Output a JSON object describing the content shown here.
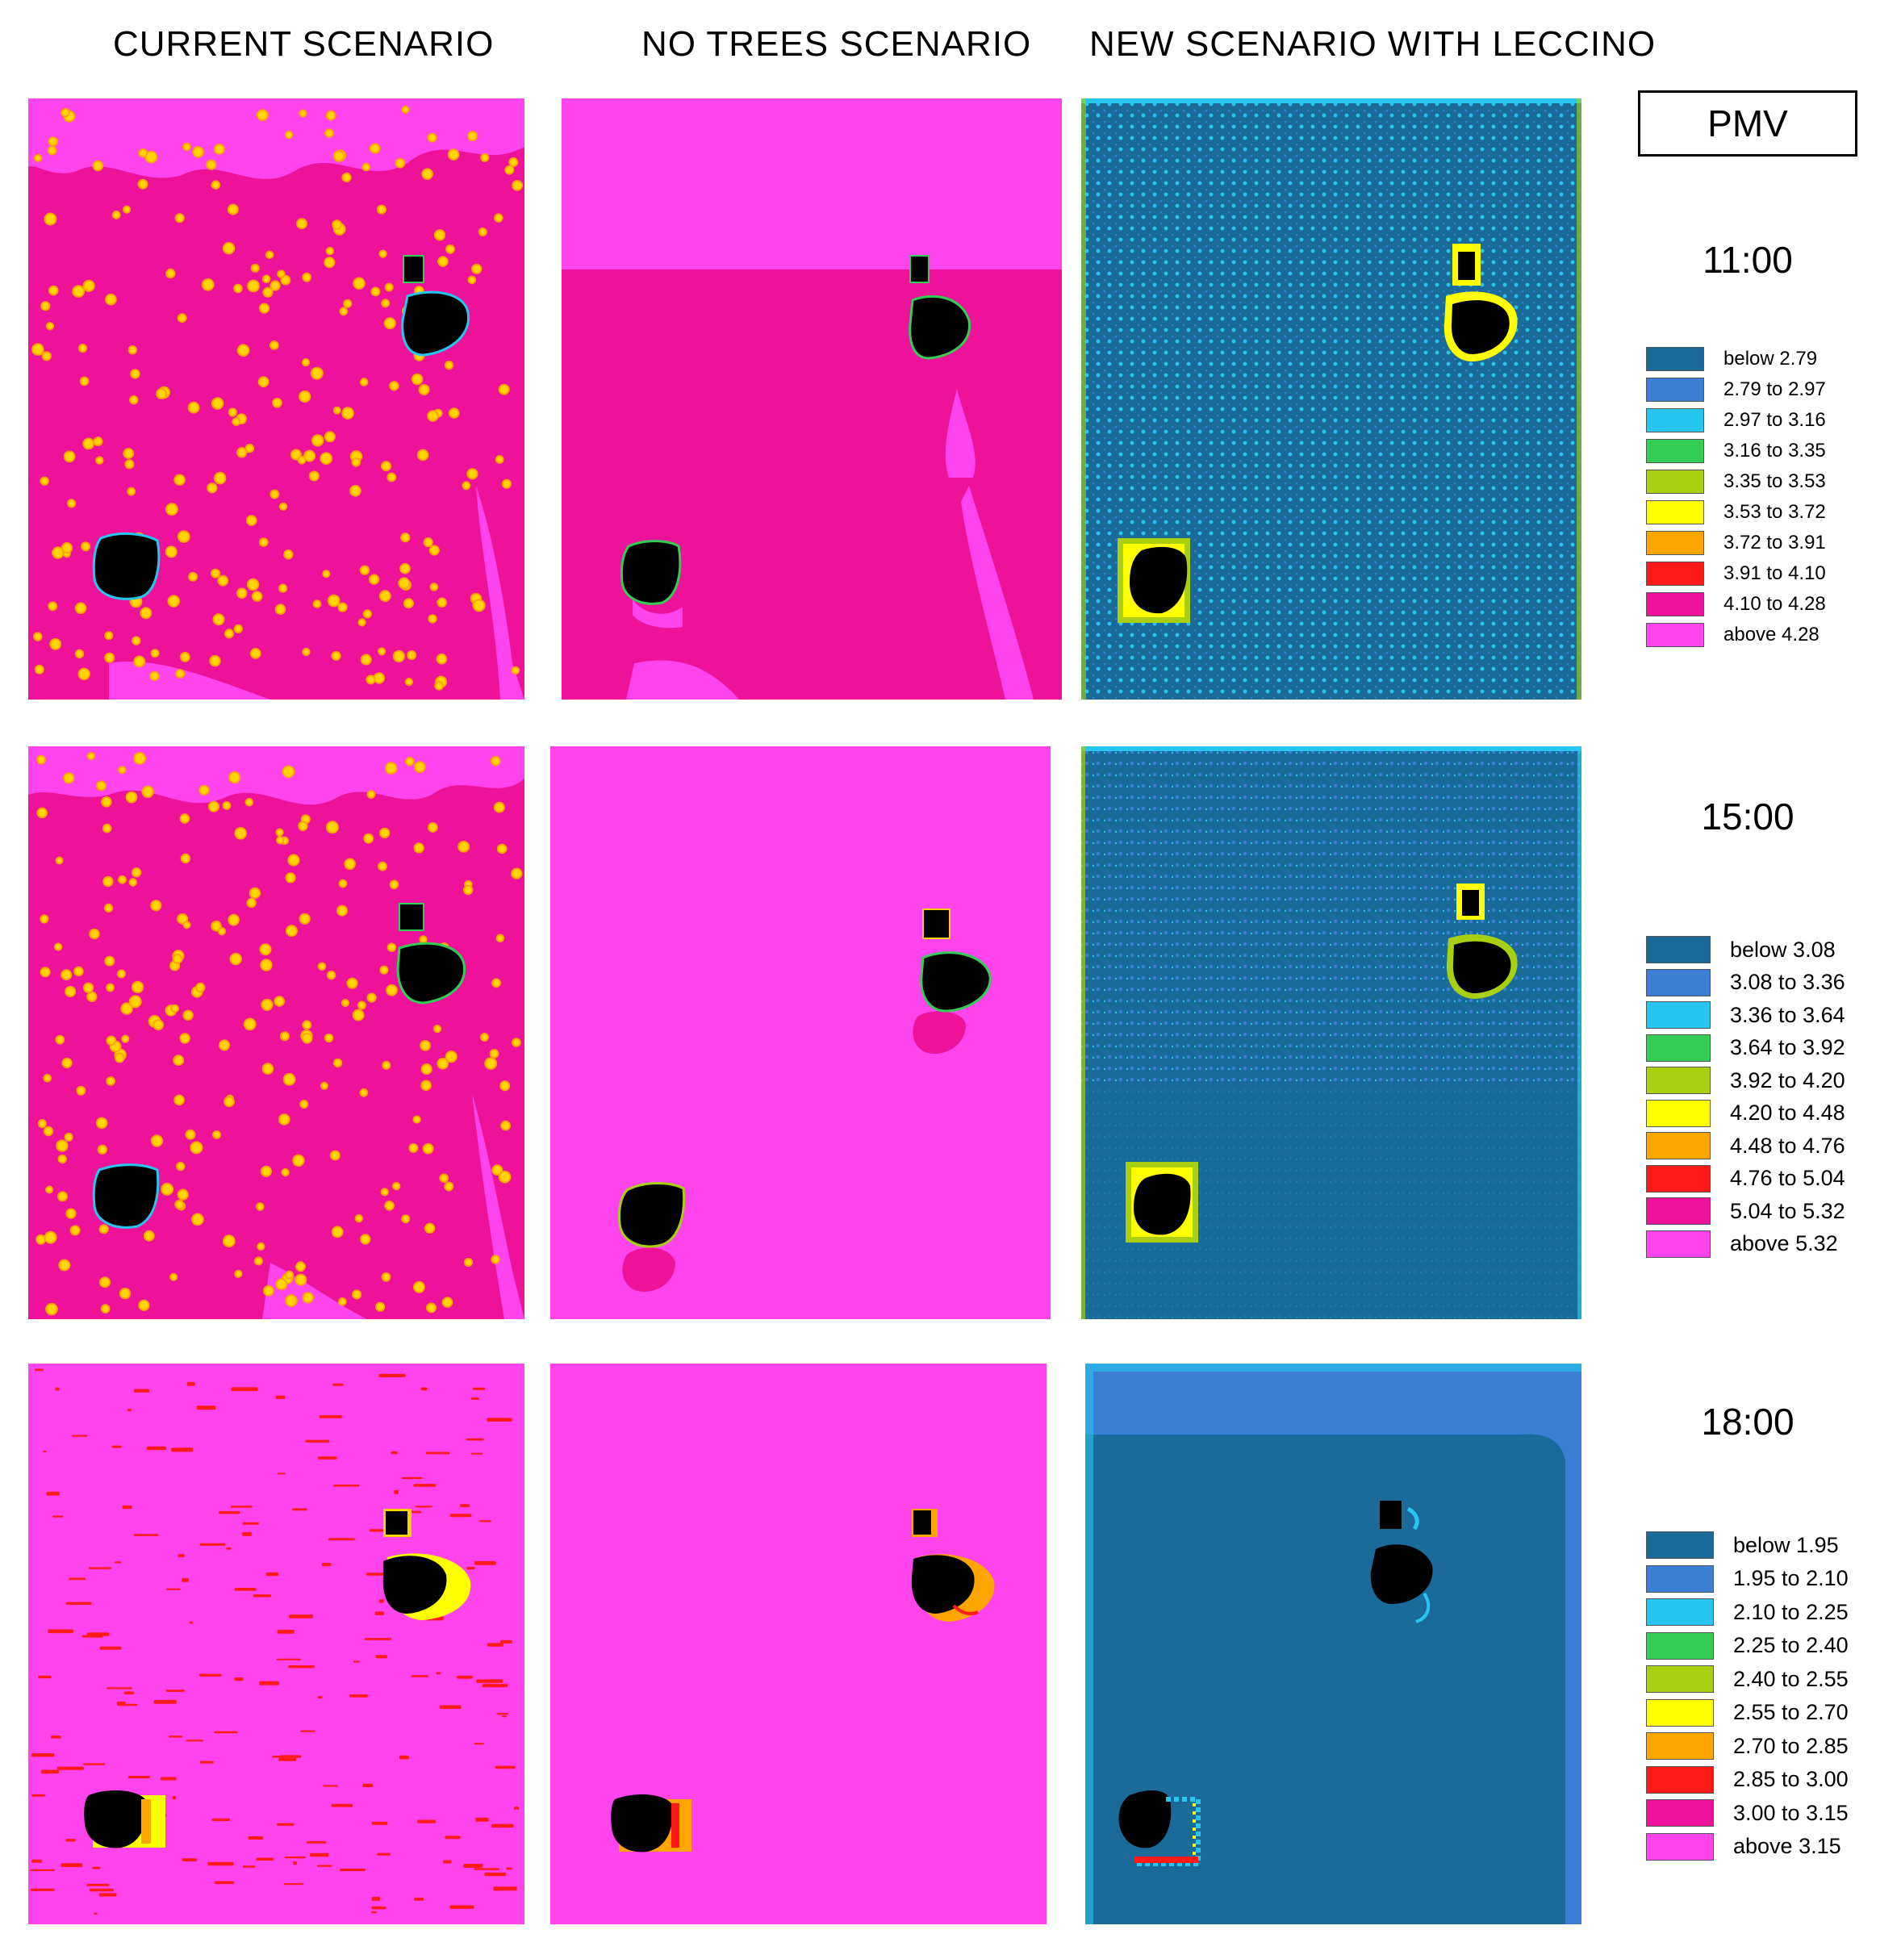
{
  "columns": [
    {
      "title": "CURRENT SCENARIO"
    },
    {
      "title": "NO TREES SCENARIO"
    },
    {
      "title": "NEW SCENARIO WITH LECCINO"
    }
  ],
  "legend_title": "PMV",
  "palette": [
    "#1a6b99",
    "#3a7fd4",
    "#26c6f0",
    "#33cc55",
    "#a8d010",
    "#ffff00",
    "#ffa500",
    "#ff1a1a",
    "#ee1199",
    "#ff44ee"
  ],
  "rows": [
    {
      "time": "11:00",
      "legend": [
        "below 2.79",
        "2.79 to 2.97",
        "2.97 to 3.16",
        "3.16 to 3.35",
        "3.35 to 3.53",
        "3.53 to 3.72",
        "3.72 to 3.91",
        "3.91 to 4.10",
        "4.10 to 4.28",
        "above 4.28"
      ]
    },
    {
      "time": "15:00",
      "legend": [
        "below 3.08",
        "3.08 to 3.36",
        "3.36 to 3.64",
        "3.64 to 3.92",
        "3.92 to 4.20",
        "4.20 to 4.48",
        "4.48 to 4.76",
        "4.76 to 5.04",
        "5.04 to 5.32",
        "above 5.32"
      ]
    },
    {
      "time": "18:00",
      "legend": [
        "below 1.95",
        "1.95 to 2.10",
        "2.10 to 2.25",
        "2.25 to 2.40",
        "2.40 to 2.55",
        "2.55 to 2.70",
        "2.70 to 2.85",
        "2.85 to 3.00",
        "3.00 to 3.15",
        "above 3.15"
      ]
    }
  ]
}
